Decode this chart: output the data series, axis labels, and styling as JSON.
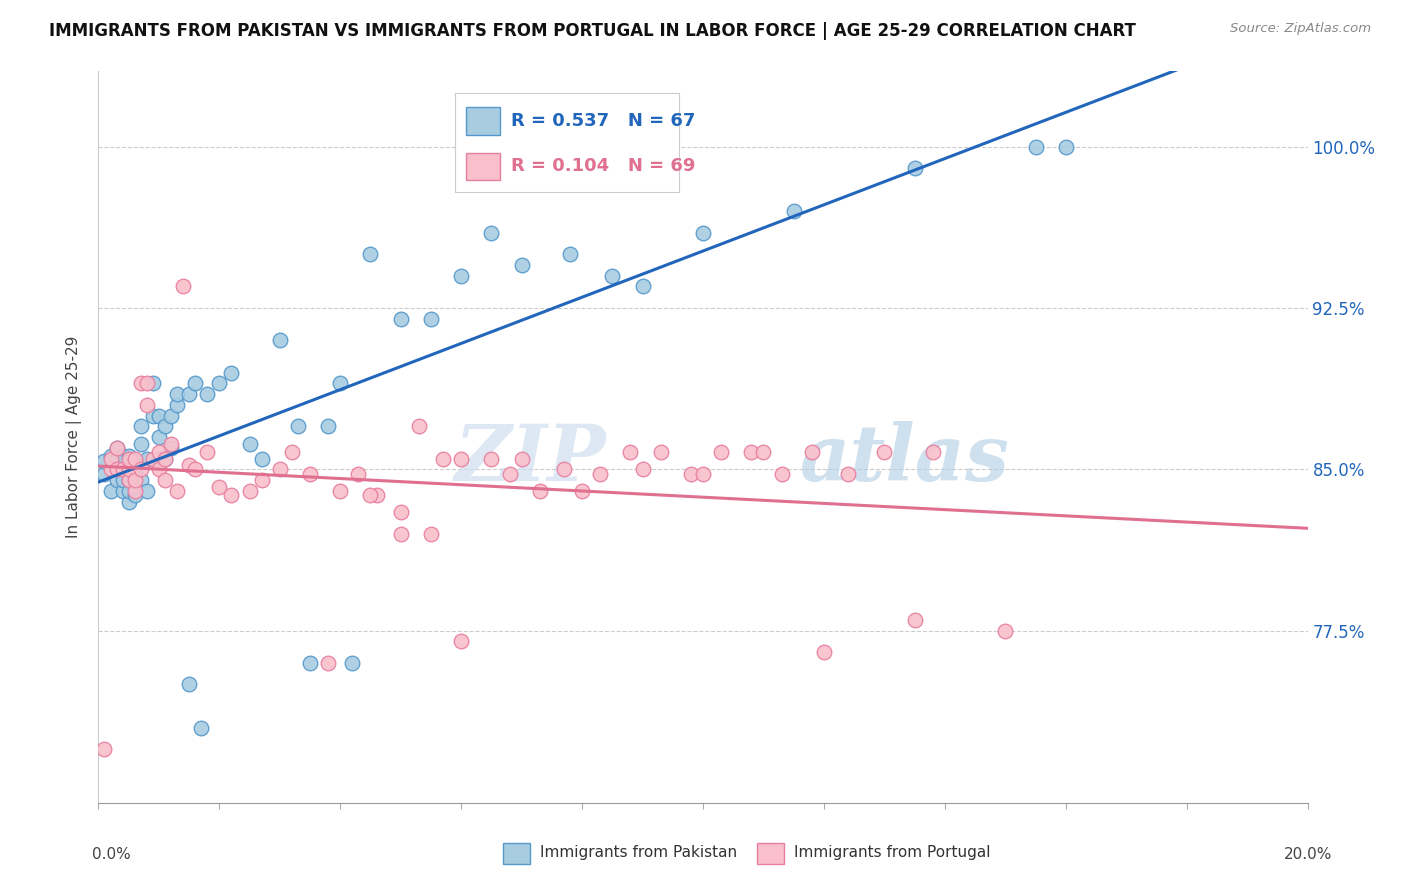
{
  "title": "IMMIGRANTS FROM PAKISTAN VS IMMIGRANTS FROM PORTUGAL IN LABOR FORCE | AGE 25-29 CORRELATION CHART",
  "source": "Source: ZipAtlas.com",
  "ylabel": "In Labor Force | Age 25-29",
  "ytick_labels": [
    "77.5%",
    "85.0%",
    "92.5%",
    "100.0%"
  ],
  "ytick_values": [
    0.775,
    0.85,
    0.925,
    1.0
  ],
  "xlim": [
    0.0,
    0.2
  ],
  "ylim": [
    0.695,
    1.035
  ],
  "legend_blue_r": "R = 0.537",
  "legend_blue_n": "N = 67",
  "legend_pink_r": "R = 0.104",
  "legend_pink_n": "N = 69",
  "legend_label_blue": "Immigrants from Pakistan",
  "legend_label_pink": "Immigrants from Portugal",
  "blue_color": "#a8cce0",
  "blue_edge": "#5599cc",
  "pink_color": "#f9c0cb",
  "pink_edge": "#e87fa0",
  "blue_line_color": "#2266bb",
  "pink_line_color": "#e07090",
  "watermark_zip": "ZIP",
  "watermark_atlas": "atlas",
  "pakistan_x": [
    0.001,
    0.001,
    0.002,
    0.002,
    0.003,
    0.003,
    0.003,
    0.003,
    0.004,
    0.004,
    0.004,
    0.004,
    0.005,
    0.005,
    0.005,
    0.005,
    0.005,
    0.005,
    0.006,
    0.006,
    0.006,
    0.006,
    0.007,
    0.007,
    0.007,
    0.008,
    0.008,
    0.009,
    0.009,
    0.01,
    0.01,
    0.01,
    0.011,
    0.011,
    0.012,
    0.012,
    0.013,
    0.013,
    0.015,
    0.016,
    0.018,
    0.02,
    0.022,
    0.025,
    0.027,
    0.03,
    0.033,
    0.038,
    0.04,
    0.045,
    0.05,
    0.055,
    0.06,
    0.065,
    0.07,
    0.078,
    0.085,
    0.09,
    0.1,
    0.115,
    0.135,
    0.155,
    0.16,
    0.015,
    0.017,
    0.035,
    0.042
  ],
  "pakistan_y": [
    0.848,
    0.854,
    0.84,
    0.856,
    0.845,
    0.85,
    0.855,
    0.86,
    0.84,
    0.845,
    0.85,
    0.856,
    0.835,
    0.84,
    0.845,
    0.848,
    0.852,
    0.856,
    0.838,
    0.842,
    0.848,
    0.854,
    0.845,
    0.862,
    0.87,
    0.84,
    0.855,
    0.875,
    0.89,
    0.855,
    0.865,
    0.875,
    0.855,
    0.87,
    0.86,
    0.875,
    0.88,
    0.885,
    0.885,
    0.89,
    0.885,
    0.89,
    0.895,
    0.862,
    0.855,
    0.91,
    0.87,
    0.87,
    0.89,
    0.95,
    0.92,
    0.92,
    0.94,
    0.96,
    0.945,
    0.95,
    0.94,
    0.935,
    0.96,
    0.97,
    0.99,
    1.0,
    1.0,
    0.75,
    0.73,
    0.76,
    0.76
  ],
  "portugal_x": [
    0.001,
    0.002,
    0.002,
    0.003,
    0.003,
    0.004,
    0.005,
    0.005,
    0.005,
    0.006,
    0.006,
    0.006,
    0.007,
    0.007,
    0.008,
    0.008,
    0.009,
    0.01,
    0.01,
    0.011,
    0.011,
    0.012,
    0.013,
    0.014,
    0.015,
    0.016,
    0.018,
    0.02,
    0.022,
    0.025,
    0.027,
    0.03,
    0.032,
    0.035,
    0.038,
    0.04,
    0.043,
    0.046,
    0.05,
    0.053,
    0.057,
    0.06,
    0.065,
    0.068,
    0.073,
    0.077,
    0.083,
    0.088,
    0.093,
    0.098,
    0.103,
    0.108,
    0.113,
    0.118,
    0.124,
    0.13,
    0.138,
    0.05,
    0.06,
    0.07,
    0.08,
    0.09,
    0.045,
    0.055,
    0.1,
    0.11,
    0.12,
    0.135,
    0.15
  ],
  "portugal_y": [
    0.72,
    0.85,
    0.855,
    0.85,
    0.86,
    0.85,
    0.845,
    0.85,
    0.855,
    0.84,
    0.845,
    0.855,
    0.85,
    0.89,
    0.88,
    0.89,
    0.855,
    0.85,
    0.858,
    0.845,
    0.855,
    0.862,
    0.84,
    0.935,
    0.852,
    0.85,
    0.858,
    0.842,
    0.838,
    0.84,
    0.845,
    0.85,
    0.858,
    0.848,
    0.76,
    0.84,
    0.848,
    0.838,
    0.82,
    0.87,
    0.855,
    0.855,
    0.855,
    0.848,
    0.84,
    0.85,
    0.848,
    0.858,
    0.858,
    0.848,
    0.858,
    0.858,
    0.848,
    0.858,
    0.848,
    0.858,
    0.858,
    0.83,
    0.77,
    0.855,
    0.84,
    0.85,
    0.838,
    0.82,
    0.848,
    0.858,
    0.765,
    0.78,
    0.775
  ]
}
